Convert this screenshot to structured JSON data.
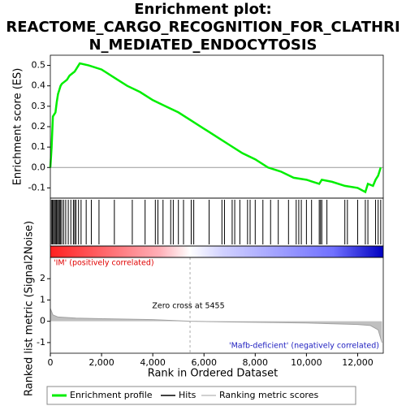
{
  "chart_data": [
    {
      "type": "line",
      "title": [
        "Enrichment plot:",
        "REACTOME_CARGO_RECOGNITION_FOR_CLATHRI",
        "N_MEDIATED_ENDOCYTOSIS"
      ],
      "y_label": "Enrichment score (ES)",
      "xlim": [
        0,
        13000
      ],
      "ylim": [
        -0.15,
        0.55
      ],
      "yticks": [
        -0.1,
        {
          "value": 0,
          "label": "0.0"
        },
        0.1,
        0.2,
        0.3,
        0.4,
        0.5
      ],
      "series": [
        {
          "name": "Enrichment profile",
          "color": "#00ee00",
          "x": [
            0,
            50,
            100,
            150,
            200,
            250,
            300,
            350,
            400,
            450,
            550,
            650,
            750,
            850,
            950,
            1050,
            1150,
            1500,
            2000,
            2500,
            3000,
            3500,
            4000,
            4500,
            5000,
            5500,
            6000,
            6500,
            7000,
            7500,
            8000,
            8500,
            9000,
            9500,
            10000,
            10500,
            10600,
            11000,
            11500,
            12000,
            12300,
            12400,
            12600,
            12700,
            12800,
            12900
          ],
          "values": [
            0,
            0.1,
            0.25,
            0.26,
            0.27,
            0.32,
            0.36,
            0.38,
            0.4,
            0.41,
            0.42,
            0.43,
            0.45,
            0.46,
            0.47,
            0.49,
            0.51,
            0.5,
            0.48,
            0.44,
            0.4,
            0.37,
            0.33,
            0.3,
            0.27,
            0.23,
            0.19,
            0.15,
            0.11,
            0.07,
            0.04,
            0.0,
            -0.02,
            -0.05,
            -0.06,
            -0.08,
            -0.06,
            -0.07,
            -0.09,
            -0.1,
            -0.12,
            -0.08,
            -0.09,
            -0.06,
            -0.04,
            0.0
          ]
        }
      ],
      "hits": {
        "name": "Hits",
        "color": "#000000",
        "x": [
          40,
          80,
          120,
          160,
          200,
          240,
          280,
          320,
          360,
          400,
          450,
          520,
          600,
          700,
          800,
          900,
          950,
          1000,
          1100,
          1200,
          1400,
          1600,
          1900,
          2500,
          3200,
          3700,
          4100,
          4200,
          4400,
          4700,
          4800,
          5000,
          5200,
          5500,
          5600,
          6200,
          6700,
          6800,
          7100,
          7200,
          7400,
          7700,
          7800,
          8000,
          8300,
          8600,
          8900,
          9300,
          9600,
          9700,
          9800,
          10000,
          10200,
          10500,
          10550,
          10600,
          10800,
          11500,
          11600,
          12000,
          12300,
          12400,
          12700,
          12800,
          12900
        ]
      }
    },
    {
      "type": "area",
      "x_label": "Rank in Ordered Dataset",
      "y_label": "Ranked list metric (Signal2Noise)",
      "xlim": [
        0,
        13000
      ],
      "xticks": [
        0,
        {
          "value": 2000,
          "label": "2,000"
        },
        {
          "value": 4000,
          "label": "4,000"
        },
        {
          "value": 6000,
          "label": "6,000"
        },
        {
          "value": 8000,
          "label": "8,000"
        },
        {
          "value": 10000,
          "label": "10,000"
        },
        {
          "value": 12000,
          "label": "12,000"
        }
      ],
      "ylim": [
        -1.5,
        3
      ],
      "yticks": [
        -1,
        0,
        1,
        2
      ],
      "zero_cross": 5455,
      "annotations": [
        "'IM' (positively correlated)",
        "Zero cross at 5455",
        "'Mafb-deficient' (negatively correlated)"
      ],
      "series": [
        {
          "name": "Ranking metric scores",
          "color": "#c0c0c0",
          "x": [
            0,
            100,
            300,
            1000,
            2000,
            4000,
            5455,
            7000,
            10000,
            12000,
            12500,
            12800,
            12950
          ],
          "values": [
            0.6,
            0.3,
            0.2,
            0.15,
            0.12,
            0.08,
            0,
            -0.03,
            -0.08,
            -0.15,
            -0.2,
            -0.4,
            -1.0
          ]
        }
      ]
    }
  ]
}
